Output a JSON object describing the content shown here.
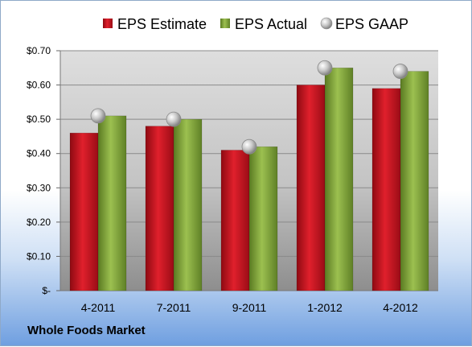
{
  "chart_data": {
    "type": "bar",
    "categories": [
      "4-2011",
      "7-2011",
      "9-2011",
      "1-2012",
      "4-2012"
    ],
    "series": [
      {
        "name": "EPS Estimate",
        "values": [
          0.46,
          0.48,
          0.41,
          0.6,
          0.59
        ],
        "color": "#c8101e"
      },
      {
        "name": "EPS Actual",
        "values": [
          0.51,
          0.5,
          0.42,
          0.65,
          0.64
        ],
        "color": "#7fa339"
      },
      {
        "name": "EPS GAAP",
        "values": [
          0.51,
          0.5,
          0.42,
          0.65,
          0.64
        ],
        "color": "#b4b4b4",
        "marker": "circle"
      }
    ],
    "ylim": [
      0,
      0.7
    ],
    "yticks": [
      0,
      0.1,
      0.2,
      0.3,
      0.4,
      0.5,
      0.6,
      0.7
    ],
    "ytick_labels": [
      "$-",
      "$0.10",
      "$0.20",
      "$0.30",
      "$0.40",
      "$0.50",
      "$0.60",
      "$0.70"
    ],
    "grid": true,
    "legend_position": "top"
  },
  "footer": {
    "company": "Whole Foods Market"
  }
}
